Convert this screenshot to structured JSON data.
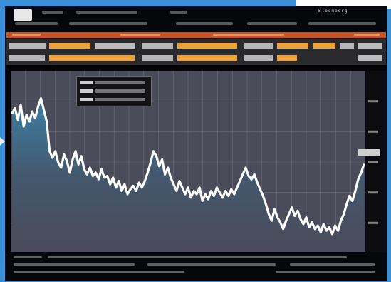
{
  "window": {
    "brand": "Bloomberg"
  },
  "chart_data": {
    "type": "area",
    "series": [
      {
        "values": [
          0.83,
          0.86,
          0.79,
          0.88,
          0.75,
          0.82,
          0.78,
          0.84,
          0.8,
          0.87,
          0.92,
          0.85,
          0.78,
          0.6,
          0.56,
          0.6,
          0.53,
          0.5,
          0.58,
          0.54,
          0.47,
          0.55,
          0.6,
          0.52,
          0.57,
          0.49,
          0.46,
          0.5,
          0.45,
          0.47,
          0.43,
          0.49,
          0.44,
          0.45,
          0.4,
          0.44,
          0.38,
          0.42,
          0.36,
          0.4,
          0.34,
          0.37,
          0.39,
          0.36,
          0.41,
          0.38,
          0.42,
          0.47,
          0.53,
          0.6,
          0.57,
          0.51,
          0.55,
          0.46,
          0.5,
          0.44,
          0.4,
          0.36,
          0.42,
          0.38,
          0.34,
          0.38,
          0.32,
          0.36,
          0.34,
          0.38,
          0.3,
          0.34,
          0.31,
          0.36,
          0.33,
          0.38,
          0.35,
          0.32,
          0.36,
          0.33,
          0.37,
          0.34,
          0.38,
          0.42,
          0.46,
          0.5,
          0.45,
          0.43,
          0.46,
          0.41,
          0.37,
          0.33,
          0.28,
          0.22,
          0.18,
          0.25,
          0.2,
          0.17,
          0.13,
          0.18,
          0.22,
          0.26,
          0.21,
          0.24,
          0.19,
          0.16,
          0.2,
          0.14,
          0.17,
          0.13,
          0.15,
          0.11,
          0.16,
          0.12,
          0.14,
          0.1,
          0.15,
          0.12,
          0.18,
          0.22,
          0.28,
          0.33,
          0.3,
          0.36,
          0.43,
          0.47,
          0.52
        ]
      }
    ],
    "ylim": [
      0,
      1
    ],
    "grid": true
  }
}
